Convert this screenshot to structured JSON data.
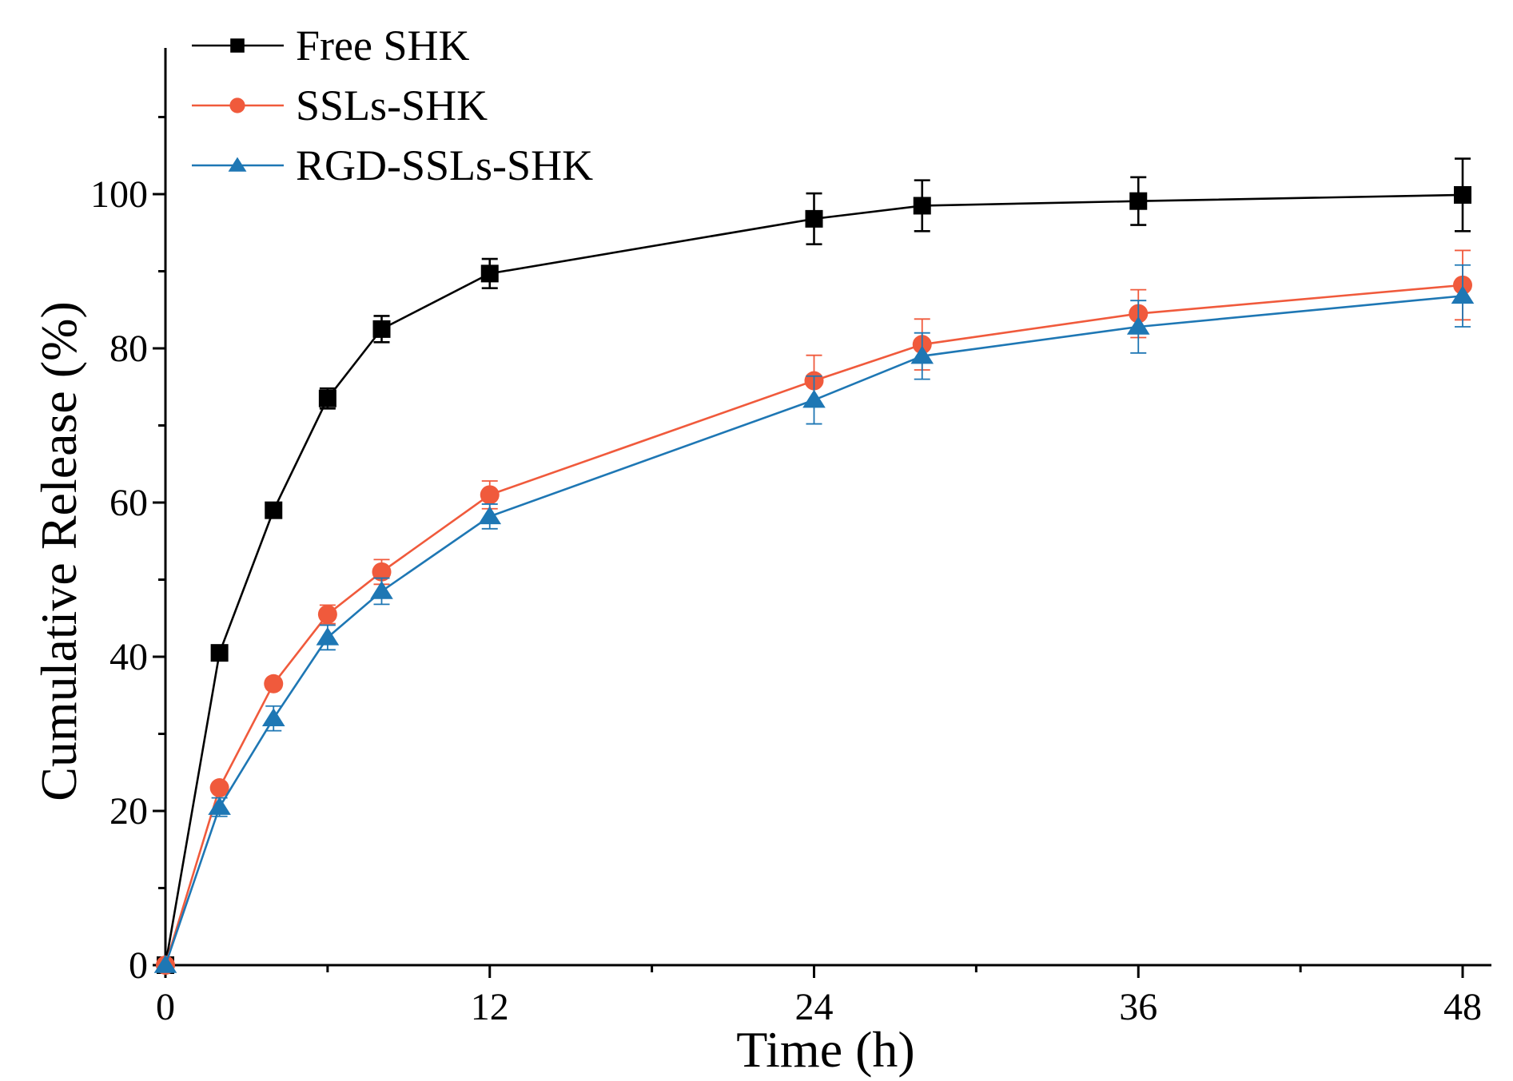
{
  "chart_data": {
    "type": "line",
    "title": "",
    "xlabel": "Time (h)",
    "ylabel": "Cumulative Release (%)",
    "xlim": [
      0,
      49
    ],
    "ylim": [
      0,
      118
    ],
    "xticks": [
      0,
      12,
      24,
      36,
      48
    ],
    "xminor": [
      6,
      18,
      30,
      42
    ],
    "yticks": [
      0,
      20,
      40,
      60,
      80,
      100
    ],
    "legend_position": "top-left",
    "series": [
      {
        "name": "Free SHK",
        "color": "#000000",
        "marker": "square",
        "x": [
          0,
          2,
          4,
          6,
          8,
          12,
          24,
          28,
          36,
          48
        ],
        "y": [
          0,
          40.5,
          59,
          73.5,
          82.5,
          89.7,
          96.8,
          98.5,
          99.1,
          99.9
        ],
        "err": [
          0,
          0.7,
          0.8,
          1.3,
          1.7,
          1.9,
          3.3,
          3.3,
          3.1,
          4.7
        ]
      },
      {
        "name": "SSLs-SHK",
        "color": "#f05a3c",
        "marker": "circle",
        "x": [
          0,
          2,
          4,
          6,
          8,
          12,
          24,
          28,
          36,
          48
        ],
        "y": [
          0,
          23,
          36.5,
          45.5,
          51,
          61,
          75.8,
          80.5,
          84.5,
          88.2
        ],
        "err": [
          0,
          0.5,
          0.6,
          1.2,
          1.6,
          1.8,
          3.3,
          3.3,
          3.1,
          4.5
        ]
      },
      {
        "name": "RGD-SSLs-SHK",
        "color": "#1e77b4",
        "marker": "triangle",
        "x": [
          0,
          2,
          4,
          6,
          8,
          12,
          24,
          28,
          36,
          48
        ],
        "y": [
          0,
          20.5,
          32,
          42.5,
          48.5,
          58.2,
          73.3,
          79,
          82.8,
          86.8
        ],
        "err": [
          0,
          1.2,
          1.6,
          1.6,
          1.7,
          1.6,
          3.1,
          3.0,
          3.4,
          4.0
        ]
      }
    ]
  }
}
